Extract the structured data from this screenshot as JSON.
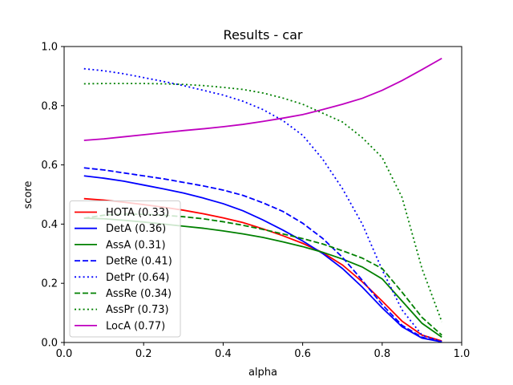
{
  "chart_data": {
    "type": "line",
    "title": "Results - car",
    "xlabel": "alpha",
    "ylabel": "score",
    "xlim": [
      0.0,
      1.0
    ],
    "ylim": [
      0.0,
      1.0
    ],
    "grid": false,
    "legend_position": "lower-left",
    "x_ticks": [
      "0.0",
      "0.2",
      "0.4",
      "0.6",
      "0.8",
      "1.0"
    ],
    "y_ticks": [
      "0.0",
      "0.2",
      "0.4",
      "0.6",
      "0.8",
      "1.0"
    ],
    "x": [
      0.05,
      0.1,
      0.15,
      0.2,
      0.25,
      0.3,
      0.35,
      0.4,
      0.45,
      0.5,
      0.55,
      0.6,
      0.65,
      0.7,
      0.75,
      0.8,
      0.85,
      0.9,
      0.95
    ],
    "series": [
      {
        "name": "HOTA (0.33)",
        "color": "#ff0000",
        "style": "solid",
        "values": [
          0.486,
          0.481,
          0.474,
          0.466,
          0.457,
          0.447,
          0.435,
          0.421,
          0.405,
          0.384,
          0.361,
          0.335,
          0.304,
          0.262,
          0.205,
          0.14,
          0.072,
          0.025,
          0.005
        ]
      },
      {
        "name": "DetA (0.36)",
        "color": "#0000ff",
        "style": "solid",
        "values": [
          0.563,
          0.555,
          0.545,
          0.532,
          0.519,
          0.505,
          0.488,
          0.469,
          0.445,
          0.414,
          0.38,
          0.343,
          0.301,
          0.25,
          0.187,
          0.117,
          0.053,
          0.015,
          0.002
        ]
      },
      {
        "name": "AssA (0.31)",
        "color": "#008000",
        "style": "solid",
        "values": [
          0.42,
          0.418,
          0.413,
          0.407,
          0.4,
          0.393,
          0.386,
          0.377,
          0.367,
          0.355,
          0.34,
          0.324,
          0.305,
          0.282,
          0.255,
          0.215,
          0.14,
          0.065,
          0.018
        ]
      },
      {
        "name": "DetRe (0.41)",
        "color": "#0000ff",
        "style": "dashed",
        "values": [
          0.59,
          0.583,
          0.573,
          0.563,
          0.553,
          0.541,
          0.529,
          0.515,
          0.497,
          0.472,
          0.443,
          0.403,
          0.352,
          0.288,
          0.21,
          0.128,
          0.058,
          0.018,
          0.002
        ]
      },
      {
        "name": "DetPr (0.64)",
        "color": "#0000ff",
        "style": "dotted",
        "values": [
          0.925,
          0.918,
          0.908,
          0.895,
          0.882,
          0.868,
          0.852,
          0.836,
          0.815,
          0.787,
          0.75,
          0.7,
          0.62,
          0.52,
          0.4,
          0.245,
          0.11,
          0.025,
          0.003
        ]
      },
      {
        "name": "AssRe (0.34)",
        "color": "#008000",
        "style": "dashed",
        "values": [
          0.42,
          0.43,
          0.434,
          0.433,
          0.43,
          0.425,
          0.418,
          0.408,
          0.396,
          0.382,
          0.367,
          0.351,
          0.333,
          0.31,
          0.285,
          0.25,
          0.17,
          0.085,
          0.025
        ]
      },
      {
        "name": "AssPr (0.73)",
        "color": "#008000",
        "style": "dotted",
        "values": [
          0.874,
          0.875,
          0.875,
          0.875,
          0.874,
          0.872,
          0.868,
          0.862,
          0.855,
          0.843,
          0.826,
          0.805,
          0.775,
          0.745,
          0.692,
          0.625,
          0.49,
          0.25,
          0.07
        ]
      },
      {
        "name": "LocA (0.77)",
        "color": "#bf00bf",
        "style": "solid",
        "values": [
          0.683,
          0.688,
          0.695,
          0.702,
          0.709,
          0.716,
          0.722,
          0.729,
          0.737,
          0.747,
          0.758,
          0.77,
          0.787,
          0.805,
          0.825,
          0.852,
          0.885,
          0.922,
          0.96
        ]
      }
    ]
  }
}
